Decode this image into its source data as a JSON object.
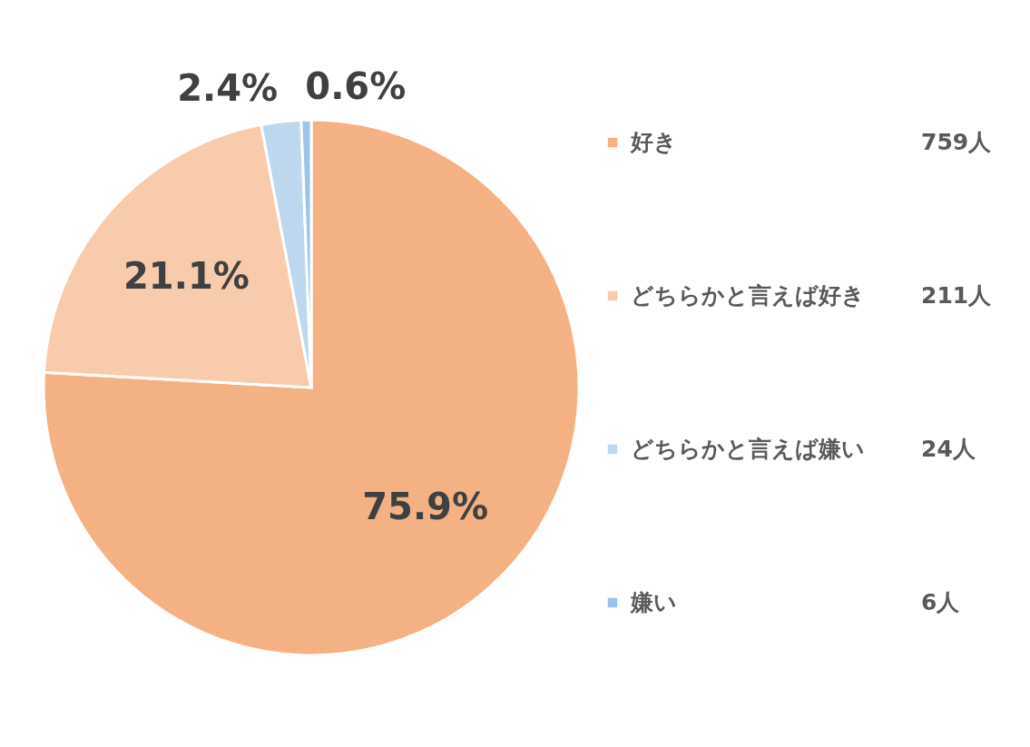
{
  "chart_data": {
    "type": "pie",
    "categories": [
      "好き",
      "どちらかと言えば好き",
      "どちらかと言えば嫌い",
      "嫌い"
    ],
    "values": [
      75.9,
      21.1,
      2.4,
      0.6
    ],
    "value_labels": [
      "75.9%",
      "21.1%",
      "2.4%",
      "0.6%"
    ],
    "colors": [
      "#f4b183",
      "#f8cbad",
      "#bdd7ee",
      "#9dc3e6"
    ],
    "annotations": [
      "759人",
      "211人",
      "24人",
      "6人"
    ],
    "legend": "right"
  }
}
